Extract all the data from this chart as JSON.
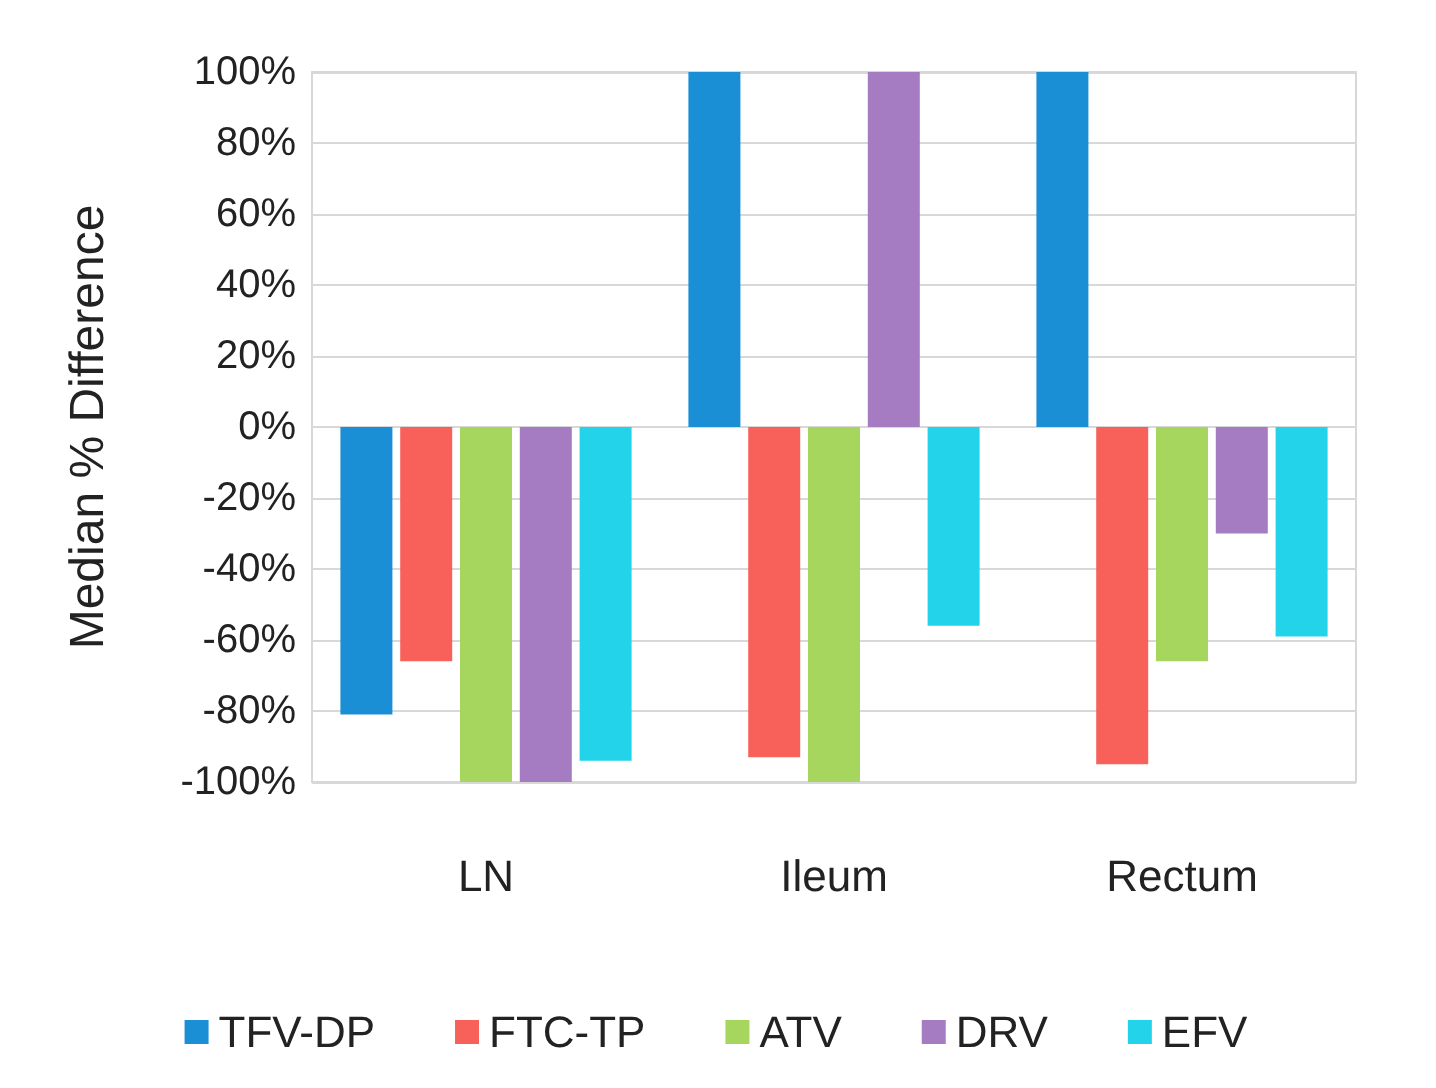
{
  "chart_data": {
    "type": "bar",
    "ylabel": "Median % Difference",
    "categories": [
      "LN",
      "Ileum",
      "Rectum"
    ],
    "series": [
      {
        "name": "TFV-DP",
        "color": "#1a8fd6",
        "values": [
          -81,
          100,
          100
        ]
      },
      {
        "name": "FTC-TP",
        "color": "#f8615a",
        "values": [
          -66,
          -93,
          -95
        ]
      },
      {
        "name": "ATV",
        "color": "#a6d65e",
        "values": [
          -100,
          -100,
          -66
        ]
      },
      {
        "name": "DRV",
        "color": "#a57cc2",
        "values": [
          -100,
          100,
          -30
        ]
      },
      {
        "name": "EFV",
        "color": "#22d3ea",
        "values": [
          -94,
          -56,
          -59
        ]
      }
    ],
    "ylim": [
      -100,
      100
    ],
    "yticks": [
      {
        "value": -100,
        "label": "-100%"
      },
      {
        "value": -80,
        "label": "-80%"
      },
      {
        "value": -60,
        "label": "-60%"
      },
      {
        "value": -40,
        "label": "-40%"
      },
      {
        "value": -20,
        "label": "-20%"
      },
      {
        "value": 0,
        "label": "0%"
      },
      {
        "value": 20,
        "label": "20%"
      },
      {
        "value": 40,
        "label": "40%"
      },
      {
        "value": 60,
        "label": "60%"
      },
      {
        "value": 80,
        "label": "80%"
      },
      {
        "value": 100,
        "label": "100%"
      }
    ],
    "grid": "y",
    "legend": "bottom"
  }
}
